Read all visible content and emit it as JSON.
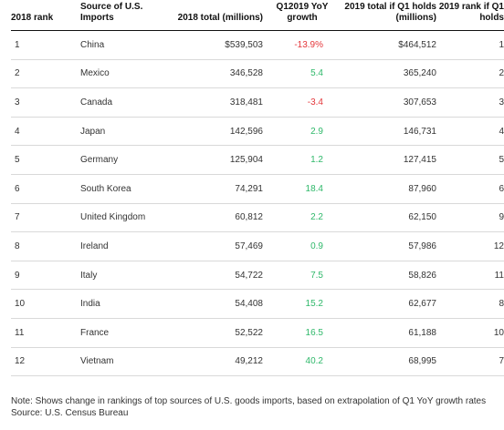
{
  "table": {
    "headers": {
      "rank_2018": "2018 rank",
      "source": "Source of U.S. Imports",
      "total_2018": "2018 total (millions)",
      "growth": "Q12019 YoY growth",
      "total_2019": "2019 total if Q1 holds (millions)",
      "rank_2019": "2019 rank if Q1 holds"
    },
    "rows": [
      {
        "rank": "1",
        "country": "China",
        "total_2018": "$539,503",
        "growth": "-13.9%",
        "growth_sign": "neg",
        "total_2019": "$464,512",
        "rank_2019": "1"
      },
      {
        "rank": "2",
        "country": "Mexico",
        "total_2018": "346,528",
        "growth": "5.4",
        "growth_sign": "pos",
        "total_2019": "365,240",
        "rank_2019": "2"
      },
      {
        "rank": "3",
        "country": "Canada",
        "total_2018": "318,481",
        "growth": "-3.4",
        "growth_sign": "neg",
        "total_2019": "307,653",
        "rank_2019": "3"
      },
      {
        "rank": "4",
        "country": "Japan",
        "total_2018": "142,596",
        "growth": "2.9",
        "growth_sign": "pos",
        "total_2019": "146,731",
        "rank_2019": "4"
      },
      {
        "rank": "5",
        "country": "Germany",
        "total_2018": "125,904",
        "growth": "1.2",
        "growth_sign": "pos",
        "total_2019": "127,415",
        "rank_2019": "5"
      },
      {
        "rank": "6",
        "country": "South Korea",
        "total_2018": "74,291",
        "growth": "18.4",
        "growth_sign": "pos",
        "total_2019": "87,960",
        "rank_2019": "6"
      },
      {
        "rank": "7",
        "country": "United Kingdom",
        "total_2018": "60,812",
        "growth": "2.2",
        "growth_sign": "pos",
        "total_2019": "62,150",
        "rank_2019": "9"
      },
      {
        "rank": "8",
        "country": "Ireland",
        "total_2018": "57,469",
        "growth": "0.9",
        "growth_sign": "pos",
        "total_2019": "57,986",
        "rank_2019": "12"
      },
      {
        "rank": "9",
        "country": "Italy",
        "total_2018": "54,722",
        "growth": "7.5",
        "growth_sign": "pos",
        "total_2019": "58,826",
        "rank_2019": "11"
      },
      {
        "rank": "10",
        "country": "India",
        "total_2018": "54,408",
        "growth": "15.2",
        "growth_sign": "pos",
        "total_2019": "62,677",
        "rank_2019": "8"
      },
      {
        "rank": "11",
        "country": "France",
        "total_2018": "52,522",
        "growth": "16.5",
        "growth_sign": "pos",
        "total_2019": "61,188",
        "rank_2019": "10"
      },
      {
        "rank": "12",
        "country": "Vietnam",
        "total_2018": "49,212",
        "growth": "40.2",
        "growth_sign": "pos",
        "total_2019": "68,995",
        "rank_2019": "7"
      }
    ]
  },
  "note": "Note: Shows change in rankings of top sources of U.S. goods imports, based on extrapolation of Q1 YoY growth rates Source: U.S. Census Bureau",
  "colors": {
    "negative": "#e4373b",
    "positive": "#2fb86a"
  }
}
